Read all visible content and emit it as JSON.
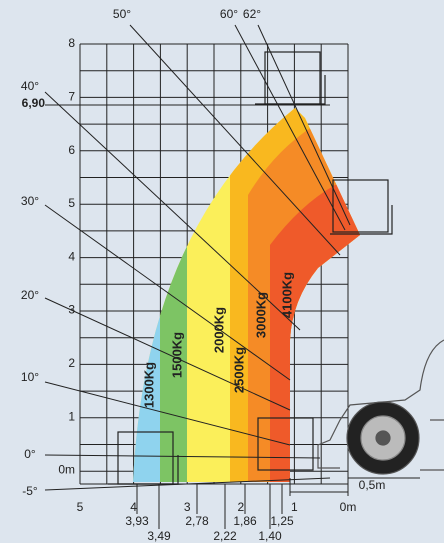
{
  "y_axis_labels": [
    "8",
    "7",
    "6",
    "5",
    "4",
    "3",
    "2",
    "1",
    "0m"
  ],
  "max_height_label": "6,90",
  "x_axis_labels": [
    "5",
    "4",
    "3",
    "2",
    "1",
    "0m"
  ],
  "reach_labels_row1": [
    "3,93",
    "2,78",
    "1,86",
    "1,25"
  ],
  "reach_labels_row2": [
    "3,49",
    "2,22",
    "1,40"
  ],
  "angle_labels": [
    "50°",
    "60°",
    "62°",
    "40°",
    "30°",
    "20°",
    "10°",
    "0°",
    "-5°"
  ],
  "load_zones": [
    "1300Kg",
    "1500Kg",
    "2000Kg",
    "2500Kg",
    "3000Kg",
    "4100Kg"
  ],
  "dimension_label": "0,5m"
}
